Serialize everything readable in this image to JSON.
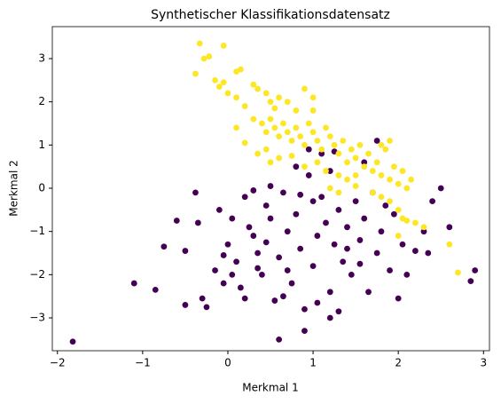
{
  "chart_data": {
    "type": "scatter",
    "title": "Synthetischer Klassifikationsdatensatz",
    "xlabel": "Merkmal 1",
    "ylabel": "Merkmal 2",
    "xlim": [
      -2.06,
      3.07
    ],
    "ylim": [
      -3.76,
      3.74
    ],
    "xticks": [
      {
        "value": -2,
        "label": "−2"
      },
      {
        "value": -1,
        "label": "−1"
      },
      0,
      1,
      2,
      3
    ],
    "yticks": [
      {
        "value": -3,
        "label": "−3"
      },
      {
        "value": -2,
        "label": "−2"
      },
      {
        "value": -1,
        "label": "−1"
      },
      0,
      1,
      2,
      3
    ],
    "series": [
      {
        "color": "#440154",
        "x": [
          -1.82,
          -1.1,
          -0.85,
          -0.75,
          -0.6,
          -0.5,
          -0.5,
          -0.38,
          -0.35,
          -0.3,
          -0.25,
          -0.15,
          -0.1,
          -0.05,
          0.0,
          0.05,
          0.1,
          0.15,
          0.2,
          0.25,
          0.3,
          0.35,
          0.4,
          0.45,
          0.5,
          0.55,
          0.6,
          0.6,
          0.65,
          0.7,
          0.75,
          0.8,
          0.85,
          0.9,
          0.95,
          1.0,
          1.0,
          1.05,
          1.1,
          1.15,
          1.2,
          1.25,
          1.3,
          1.35,
          1.4,
          1.45,
          1.5,
          1.55,
          1.6,
          1.65,
          1.7,
          1.75,
          1.8,
          1.85,
          1.9,
          1.95,
          2.0,
          2.05,
          2.1,
          2.2,
          2.3,
          2.35,
          2.4,
          2.5,
          2.6,
          2.85,
          2.9,
          0.5,
          0.8,
          0.95,
          1.1,
          1.2,
          1.25,
          1.6,
          1.75,
          1.2,
          0.3,
          0.45,
          0.7,
          0.9,
          1.05,
          0.05,
          -0.05,
          1.3,
          0.65,
          1.4,
          0.85,
          1.55,
          0.2,
          0.35
        ],
        "values": [
          -3.55,
          -2.2,
          -2.35,
          -1.35,
          -0.75,
          -1.45,
          -2.7,
          -0.1,
          -0.8,
          -2.55,
          -2.75,
          -1.9,
          -0.5,
          -1.55,
          -1.3,
          -2.0,
          -1.7,
          -2.3,
          -0.2,
          -0.9,
          -1.1,
          -1.5,
          -2.0,
          -0.4,
          -0.7,
          -2.6,
          -3.5,
          -1.6,
          -0.1,
          -1.0,
          -2.2,
          -0.6,
          -1.4,
          -2.8,
          0.3,
          -0.3,
          -1.8,
          -1.1,
          -0.2,
          -0.8,
          -2.4,
          -1.3,
          -0.5,
          -1.7,
          -0.9,
          -2.0,
          -0.3,
          -1.2,
          -0.7,
          -2.4,
          -0.1,
          -1.5,
          -1.0,
          -0.4,
          -1.9,
          -0.6,
          -2.55,
          -1.3,
          -2.0,
          -1.45,
          -1.0,
          -1.5,
          -0.3,
          0.0,
          -0.9,
          -2.15,
          -1.9,
          0.05,
          0.5,
          0.9,
          0.8,
          0.4,
          0.85,
          0.6,
          1.1,
          -3.0,
          -0.05,
          -1.25,
          -1.9,
          -3.3,
          -2.65,
          -0.7,
          -2.2,
          -2.85,
          -2.5,
          -1.4,
          -0.15,
          -1.75,
          -2.55,
          -1.85
        ]
      },
      {
        "color": "#fde725",
        "x": [
          -0.33,
          -0.28,
          -0.22,
          -0.05,
          -0.38,
          -0.15,
          -0.1,
          -0.05,
          0.1,
          0.15,
          0.3,
          0.0,
          0.1,
          0.2,
          0.35,
          0.45,
          0.5,
          0.55,
          0.6,
          0.7,
          0.8,
          0.9,
          1.0,
          1.0,
          0.3,
          0.4,
          0.45,
          0.5,
          0.55,
          0.6,
          0.65,
          0.7,
          0.75,
          0.8,
          0.85,
          0.9,
          0.95,
          1.0,
          1.05,
          1.1,
          1.15,
          1.2,
          1.25,
          1.3,
          1.35,
          1.4,
          1.45,
          1.5,
          1.55,
          1.6,
          1.65,
          1.7,
          1.75,
          1.8,
          1.85,
          1.9,
          1.95,
          2.0,
          2.05,
          2.1,
          2.15,
          1.7,
          1.8,
          1.9,
          2.0,
          2.05,
          2.1,
          2.0,
          2.2,
          2.3,
          2.6,
          2.7,
          0.2,
          0.35,
          0.45,
          0.5,
          0.6,
          0.75,
          0.9,
          1.05,
          1.15,
          1.3,
          1.4,
          1.5,
          1.2,
          1.3,
          1.5,
          0.1,
          1.8,
          1.9
        ],
        "values": [
          3.35,
          3.0,
          3.05,
          3.3,
          2.65,
          2.5,
          2.35,
          2.45,
          2.7,
          2.75,
          2.4,
          2.2,
          2.1,
          1.9,
          2.3,
          2.2,
          2.0,
          1.85,
          2.1,
          2.0,
          1.8,
          2.3,
          2.1,
          1.8,
          1.6,
          1.5,
          1.3,
          1.6,
          1.4,
          1.2,
          1.5,
          1.3,
          1.1,
          1.4,
          1.2,
          1.0,
          1.5,
          1.3,
          1.1,
          0.9,
          1.4,
          1.2,
          1.0,
          0.8,
          1.1,
          0.6,
          0.9,
          0.7,
          1.0,
          0.5,
          0.8,
          0.4,
          0.6,
          0.3,
          0.9,
          0.2,
          0.5,
          0.1,
          0.4,
          0.0,
          0.2,
          -0.1,
          -0.2,
          -0.3,
          -0.5,
          -0.7,
          -0.75,
          -1.1,
          -0.8,
          -0.9,
          -1.3,
          -1.95,
          1.05,
          0.8,
          0.9,
          0.6,
          0.7,
          0.75,
          0.5,
          0.6,
          0.4,
          0.3,
          0.2,
          0.3,
          0.0,
          -0.1,
          0.05,
          1.4,
          1.0,
          1.1
        ]
      }
    ]
  }
}
